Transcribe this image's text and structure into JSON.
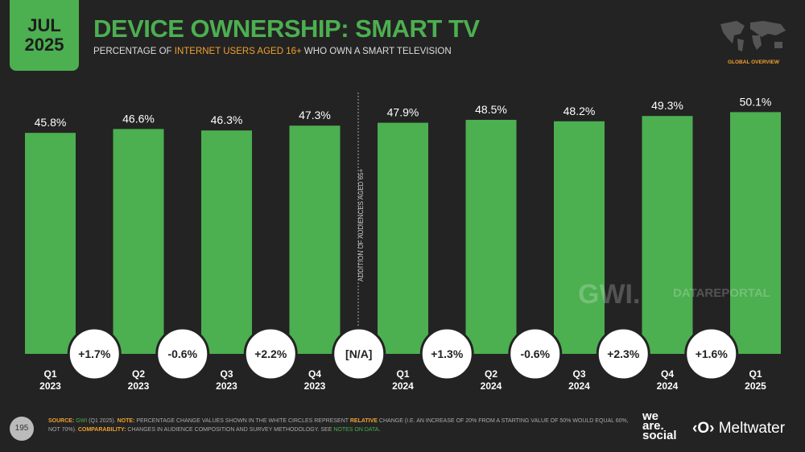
{
  "header": {
    "month": "JUL",
    "year": "2025",
    "title": "DEVICE OWNERSHIP: SMART TV",
    "subtitle_pre": "PERCENTAGE OF ",
    "subtitle_hl": "INTERNET USERS AGED 16+",
    "subtitle_post": " WHO OWN A SMART TELEVISION",
    "badge": "GLOBAL OVERVIEW"
  },
  "chart_data": {
    "type": "bar",
    "categories": [
      "Q1 2023",
      "Q2 2023",
      "Q3 2023",
      "Q4 2023",
      "Q1 2024",
      "Q2 2024",
      "Q3 2024",
      "Q4 2024",
      "Q1 2025"
    ],
    "cat_lines": [
      [
        "Q1",
        "2023"
      ],
      [
        "Q2",
        "2023"
      ],
      [
        "Q3",
        "2023"
      ],
      [
        "Q4",
        "2023"
      ],
      [
        "Q1",
        "2024"
      ],
      [
        "Q2",
        "2024"
      ],
      [
        "Q3",
        "2024"
      ],
      [
        "Q4",
        "2024"
      ],
      [
        "Q1",
        "2025"
      ]
    ],
    "values": [
      45.8,
      46.6,
      46.3,
      47.3,
      47.9,
      48.5,
      48.2,
      49.3,
      50.1
    ],
    "data_labels": [
      "45.8%",
      "46.6%",
      "46.3%",
      "47.3%",
      "47.9%",
      "48.5%",
      "48.2%",
      "49.3%",
      "50.1%"
    ],
    "changes": [
      "+1.7%",
      "-0.6%",
      "+2.2%",
      "[N/A]",
      "+1.3%",
      "-0.6%",
      "+2.3%",
      "+1.6%"
    ],
    "annotation": "ADDITION OF AUDIENCES AGED 65+",
    "ylim": [
      0,
      100
    ],
    "bar_color": "#4caf50"
  },
  "watermarks": {
    "gwi": "GWI.",
    "datareportal": "DATAREPORTAL"
  },
  "footer": {
    "page": "195",
    "source_label": "SOURCE:",
    "source": "GWI",
    "source_rest": " (Q1 2025). ",
    "note_label": "NOTE:",
    "note": " PERCENTAGE CHANGE VALUES SHOWN IN THE WHITE CIRCLES REPRESENT ",
    "relative": "RELATIVE",
    "note2": " CHANGE (I.E. AN INCREASE OF 20% FROM A STARTING VALUE OF 50% WOULD EQUAL 60%, NOT 70%). ",
    "comp_label": "COMPARABILITY:",
    "comp": " CHANGES IN AUDIENCE COMPOSITION AND SURVEY METHODOLOGY. SEE ",
    "notes_link": "NOTES ON DATA",
    "period": "."
  },
  "brands": {
    "wearesocial": [
      "we",
      "are.",
      "social"
    ],
    "meltwater": "Meltwater"
  }
}
